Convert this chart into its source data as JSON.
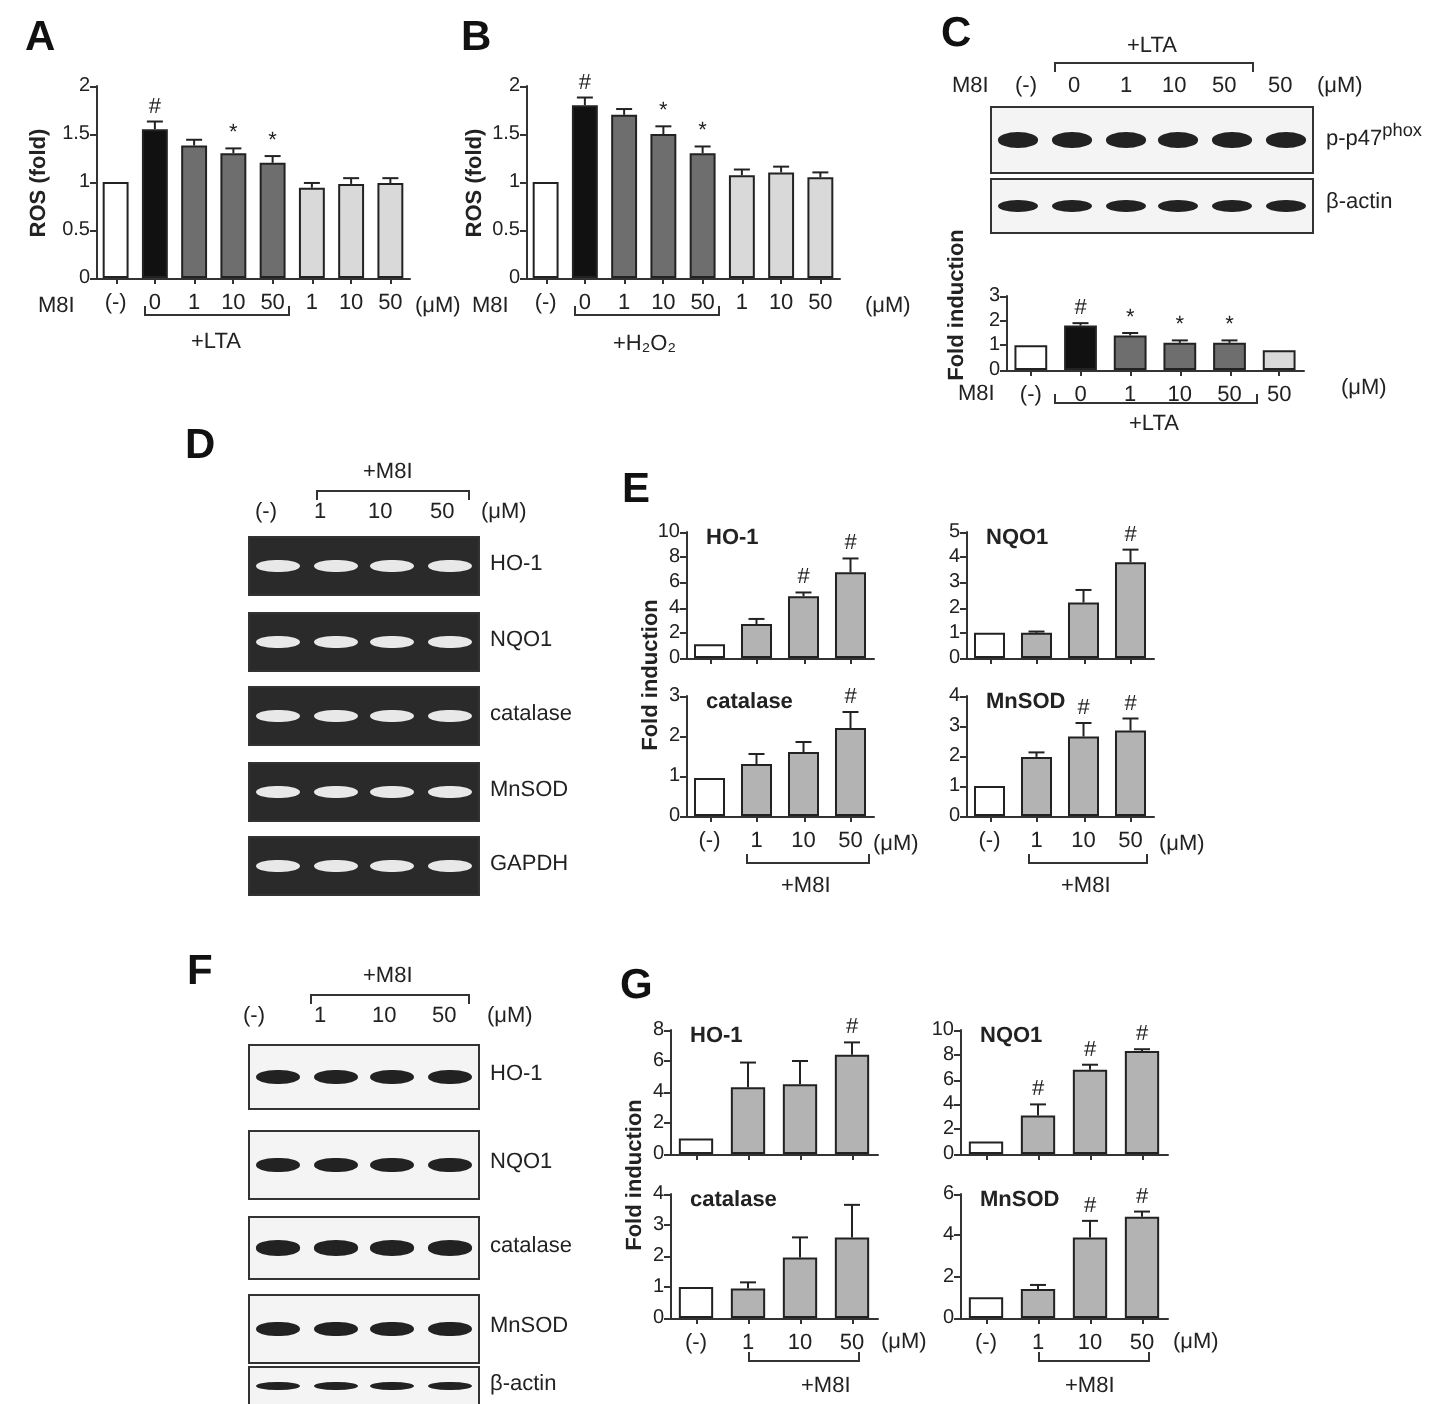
{
  "chart_data": [
    {
      "type": "bar",
      "ylabel": "ROS (fold)",
      "categories": [
        "(-)",
        "0",
        "1",
        "10",
        "50",
        "1",
        "10",
        "50"
      ],
      "values": [
        1,
        1.55,
        1.38,
        1.3,
        1.2,
        0.94,
        0.98,
        0.99
      ],
      "colors": [
        "#ffffff",
        "#111111",
        "#6e6e6e",
        "#6e6e6e",
        "#6e6e6e",
        "#d9d9d9",
        "#d9d9d9",
        "#d9d9d9"
      ],
      "errors": [
        null,
        [
          1.55,
          1.63
        ],
        [
          1.38,
          1.44
        ],
        [
          1.3,
          1.35
        ],
        [
          1.2,
          1.27
        ],
        [
          0.94,
          0.99
        ],
        [
          0.98,
          1.04
        ],
        [
          0.99,
          1.04
        ]
      ],
      "value_labels": [
        null,
        "#",
        null,
        "*",
        "*",
        null,
        null,
        null
      ],
      "ylim": [
        0,
        2
      ],
      "yticks": [
        0,
        0.5,
        1,
        1.5,
        2
      ],
      "annotations": [
        "A",
        "M8I",
        "(μM)",
        "+LTA"
      ]
    },
    {
      "type": "bar",
      "ylabel": "ROS (fold)",
      "categories": [
        "(-)",
        "0",
        "1",
        "10",
        "50",
        "1",
        "10",
        "50"
      ],
      "values": [
        1,
        1.8,
        1.7,
        1.5,
        1.3,
        1.07,
        1.1,
        1.05
      ],
      "colors": [
        "#ffffff",
        "#111111",
        "#6e6e6e",
        "#6e6e6e",
        "#6e6e6e",
        "#d9d9d9",
        "#d9d9d9",
        "#d9d9d9"
      ],
      "errors": [
        null,
        [
          1.8,
          1.88
        ],
        [
          1.7,
          1.76
        ],
        [
          1.5,
          1.58
        ],
        [
          1.3,
          1.37
        ],
        [
          1.07,
          1.13
        ],
        [
          1.1,
          1.16
        ],
        [
          1.05,
          1.1
        ]
      ],
      "value_labels": [
        null,
        "#",
        null,
        "*",
        "*",
        null,
        null,
        null
      ],
      "ylim": [
        0,
        2
      ],
      "yticks": [
        0,
        0.5,
        1,
        1.5,
        2
      ],
      "annotations": [
        "B",
        "M8I",
        "(μM)",
        "+H₂O₂"
      ]
    },
    {
      "type": "bar",
      "ylabel": "Fold induction",
      "categories": [
        "(-)",
        "0",
        "1",
        "10",
        "50",
        "50"
      ],
      "values": [
        1,
        1.8,
        1.4,
        1.1,
        1.1,
        0.8
      ],
      "colors": [
        "#ffffff",
        "#111111",
        "#6e6e6e",
        "#6e6e6e",
        "#6e6e6e",
        "#d9d9d9"
      ],
      "errors": [
        null,
        [
          1.8,
          1.9
        ],
        [
          1.4,
          1.5
        ],
        [
          1.1,
          1.2
        ],
        [
          1.1,
          1.2
        ],
        null
      ],
      "value_labels": [
        null,
        "#",
        "*",
        "*",
        "*",
        null
      ],
      "ylim": [
        0,
        3
      ],
      "yticks": [
        0,
        1,
        2,
        3
      ],
      "annotations": [
        "C",
        "+LTA",
        "M8I",
        "(-)",
        "0",
        "1",
        "10",
        "50",
        "50",
        "(μM)",
        "p-p47$^{phox}$",
        "β-actin",
        "M8I",
        "(μM)",
        "+LTA"
      ]
    },
    {
      "type": "other",
      "annotations": [
        "D",
        "+M8I",
        "(-)",
        "1",
        "10",
        "50",
        "(μM)",
        "HO-1",
        "NQO1",
        "catalase",
        "MnSOD",
        "GAPDH"
      ]
    },
    {
      "type": "bar",
      "title": "HO-1",
      "ylabel": "Fold induction",
      "categories": [
        null,
        null,
        null,
        null
      ],
      "values": [
        1.1,
        2.7,
        4.9,
        6.8
      ],
      "colors": [
        "#ffffff",
        "#b3b3b3",
        "#b3b3b3",
        "#b3b3b3"
      ],
      "errors": [
        null,
        [
          2.7,
          3.1
        ],
        [
          4.9,
          5.2
        ],
        [
          6.8,
          7.9
        ]
      ],
      "value_labels": [
        null,
        null,
        "#",
        "#"
      ],
      "ylim": [
        0,
        10
      ],
      "yticks": [
        0,
        2,
        4,
        6,
        8,
        10
      ],
      "tick_labels": "y",
      "annotations": [
        "E"
      ]
    },
    {
      "type": "bar",
      "title": "NQO1",
      "categories": [
        null,
        null,
        null,
        null
      ],
      "values": [
        1,
        1,
        2.2,
        3.8
      ],
      "colors": [
        "#ffffff",
        "#b3b3b3",
        "#b3b3b3",
        "#b3b3b3"
      ],
      "errors": [
        null,
        [
          1,
          1.05
        ],
        [
          2.2,
          2.7
        ],
        [
          3.8,
          4.3
        ]
      ],
      "value_labels": [
        null,
        null,
        null,
        "#"
      ],
      "ylim": [
        0,
        5
      ],
      "yticks": [
        0,
        1,
        2,
        3,
        4,
        5
      ],
      "tick_labels": "y"
    },
    {
      "type": "bar",
      "title": "catalase",
      "categories": [
        "(-)",
        "1",
        "10",
        "50"
      ],
      "values": [
        0.95,
        1.3,
        1.6,
        2.2
      ],
      "colors": [
        "#ffffff",
        "#b3b3b3",
        "#b3b3b3",
        "#b3b3b3"
      ],
      "errors": [
        null,
        [
          1.3,
          1.55
        ],
        [
          1.6,
          1.85
        ],
        [
          2.2,
          2.6
        ]
      ],
      "value_labels": [
        null,
        null,
        null,
        "#"
      ],
      "ylim": [
        0,
        3
      ],
      "yticks": [
        0,
        1,
        2,
        3
      ],
      "annotations": [
        "(μM)",
        "+M8I"
      ]
    },
    {
      "type": "bar",
      "title": "MnSOD",
      "categories": [
        "(-)",
        "1",
        "10",
        "50"
      ],
      "values": [
        1,
        1.97,
        2.65,
        2.85
      ],
      "colors": [
        "#ffffff",
        "#b3b3b3",
        "#b3b3b3",
        "#b3b3b3"
      ],
      "errors": [
        null,
        [
          1.97,
          2.12
        ],
        [
          2.65,
          3.1
        ],
        [
          2.85,
          3.25
        ]
      ],
      "value_labels": [
        null,
        null,
        "#",
        "#"
      ],
      "ylim": [
        0,
        4
      ],
      "yticks": [
        0,
        1,
        2,
        3,
        4
      ],
      "annotations": [
        "(μM)",
        "+M8I"
      ]
    },
    {
      "type": "other",
      "annotations": [
        "F",
        "+M8I",
        "(-)",
        "1",
        "10",
        "50",
        "(μM)",
        "HO-1",
        "NQO1",
        "catalase",
        "MnSOD",
        "β-actin"
      ]
    },
    {
      "type": "bar",
      "title": "HO-1",
      "ylabel": "Fold induction",
      "categories": [
        null,
        null,
        null,
        null
      ],
      "values": [
        1,
        4.3,
        4.5,
        6.4
      ],
      "colors": [
        "#ffffff",
        "#b3b3b3",
        "#b3b3b3",
        "#b3b3b3"
      ],
      "errors": [
        null,
        [
          4.3,
          5.9
        ],
        [
          4.5,
          6
        ],
        [
          6.4,
          7.2
        ]
      ],
      "value_labels": [
        null,
        null,
        null,
        "#"
      ],
      "ylim": [
        0,
        8
      ],
      "yticks": [
        0,
        2,
        4,
        6,
        8
      ],
      "tick_labels": "y",
      "annotations": [
        "G"
      ]
    },
    {
      "type": "bar",
      "title": "NQO1",
      "categories": [
        null,
        null,
        null,
        null
      ],
      "values": [
        1,
        3.1,
        6.8,
        8.3
      ],
      "colors": [
        "#ffffff",
        "#b3b3b3",
        "#b3b3b3",
        "#b3b3b3"
      ],
      "errors": [
        null,
        [
          3.1,
          4
        ],
        [
          6.8,
          7.2
        ],
        [
          8.3,
          8.45
        ]
      ],
      "value_labels": [
        null,
        "#",
        "#",
        "#"
      ],
      "ylim": [
        0,
        10
      ],
      "yticks": [
        0,
        2,
        4,
        6,
        8,
        10
      ],
      "tick_labels": "y"
    },
    {
      "type": "bar",
      "title": "catalase",
      "categories": [
        "(-)",
        "1",
        "10",
        "50"
      ],
      "values": [
        1,
        0.95,
        1.95,
        2.6
      ],
      "colors": [
        "#ffffff",
        "#b3b3b3",
        "#b3b3b3",
        "#b3b3b3"
      ],
      "errors": [
        null,
        [
          0.95,
          1.15
        ],
        [
          1.95,
          2.6
        ],
        [
          2.6,
          3.65
        ]
      ],
      "ylim": [
        0,
        4
      ],
      "yticks": [
        0,
        1,
        2,
        3,
        4
      ],
      "annotations": [
        "(μM)",
        "+M8I"
      ]
    },
    {
      "type": "bar",
      "title": "MnSOD",
      "categories": [
        "(-)",
        "1",
        "10",
        "50"
      ],
      "values": [
        1,
        1.4,
        3.9,
        4.9
      ],
      "colors": [
        "#ffffff",
        "#b3b3b3",
        "#b3b3b3",
        "#b3b3b3"
      ],
      "errors": [
        null,
        [
          1.4,
          1.6
        ],
        [
          3.9,
          4.7
        ],
        [
          4.9,
          5.15
        ]
      ],
      "value_labels": [
        null,
        null,
        "#",
        "#"
      ],
      "ylim": [
        0,
        6
      ],
      "yticks": [
        0,
        2,
        4,
        6
      ],
      "annotations": [
        "(μM)",
        "+M8I"
      ]
    }
  ]
}
